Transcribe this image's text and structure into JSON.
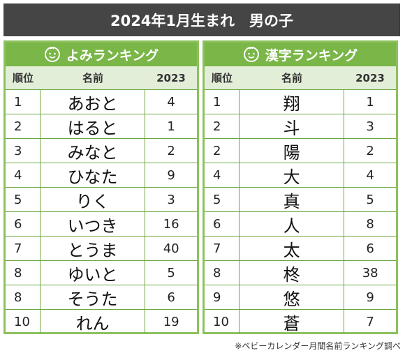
{
  "title": "2024年1月生まれ　男の子",
  "columns": {
    "rank": "順位",
    "name": "名前",
    "year": "2023"
  },
  "panels": [
    {
      "heading": "よみランキング",
      "rows": [
        {
          "rank": "1",
          "name": "あおと",
          "prev": "4"
        },
        {
          "rank": "2",
          "name": "はると",
          "prev": "1"
        },
        {
          "rank": "3",
          "name": "みなと",
          "prev": "2"
        },
        {
          "rank": "4",
          "name": "ひなた",
          "prev": "9"
        },
        {
          "rank": "5",
          "name": "りく",
          "prev": "3"
        },
        {
          "rank": "6",
          "name": "いつき",
          "prev": "16"
        },
        {
          "rank": "7",
          "name": "とうま",
          "prev": "40"
        },
        {
          "rank": "8",
          "name": "ゆいと",
          "prev": "5"
        },
        {
          "rank": "8",
          "name": "そうた",
          "prev": "6"
        },
        {
          "rank": "10",
          "name": "れん",
          "prev": "19"
        }
      ]
    },
    {
      "heading": "漢字ランキング",
      "rows": [
        {
          "rank": "1",
          "name": "翔",
          "prev": "1"
        },
        {
          "rank": "2",
          "name": "斗",
          "prev": "3"
        },
        {
          "rank": "2",
          "name": "陽",
          "prev": "2"
        },
        {
          "rank": "4",
          "name": "大",
          "prev": "4"
        },
        {
          "rank": "5",
          "name": "真",
          "prev": "5"
        },
        {
          "rank": "6",
          "name": "人",
          "prev": "8"
        },
        {
          "rank": "7",
          "name": "太",
          "prev": "6"
        },
        {
          "rank": "8",
          "name": "柊",
          "prev": "38"
        },
        {
          "rank": "9",
          "name": "悠",
          "prev": "9"
        },
        {
          "rank": "10",
          "name": "蒼",
          "prev": "7"
        }
      ]
    }
  ],
  "footnote": "※ベビーカレンダー月間名前ランキング調べ",
  "colors": {
    "accent": "#7ab648",
    "header_bg": "#e3eed8",
    "title_bg": "#454545"
  },
  "icons": {
    "panel": "smiley-face-icon"
  }
}
